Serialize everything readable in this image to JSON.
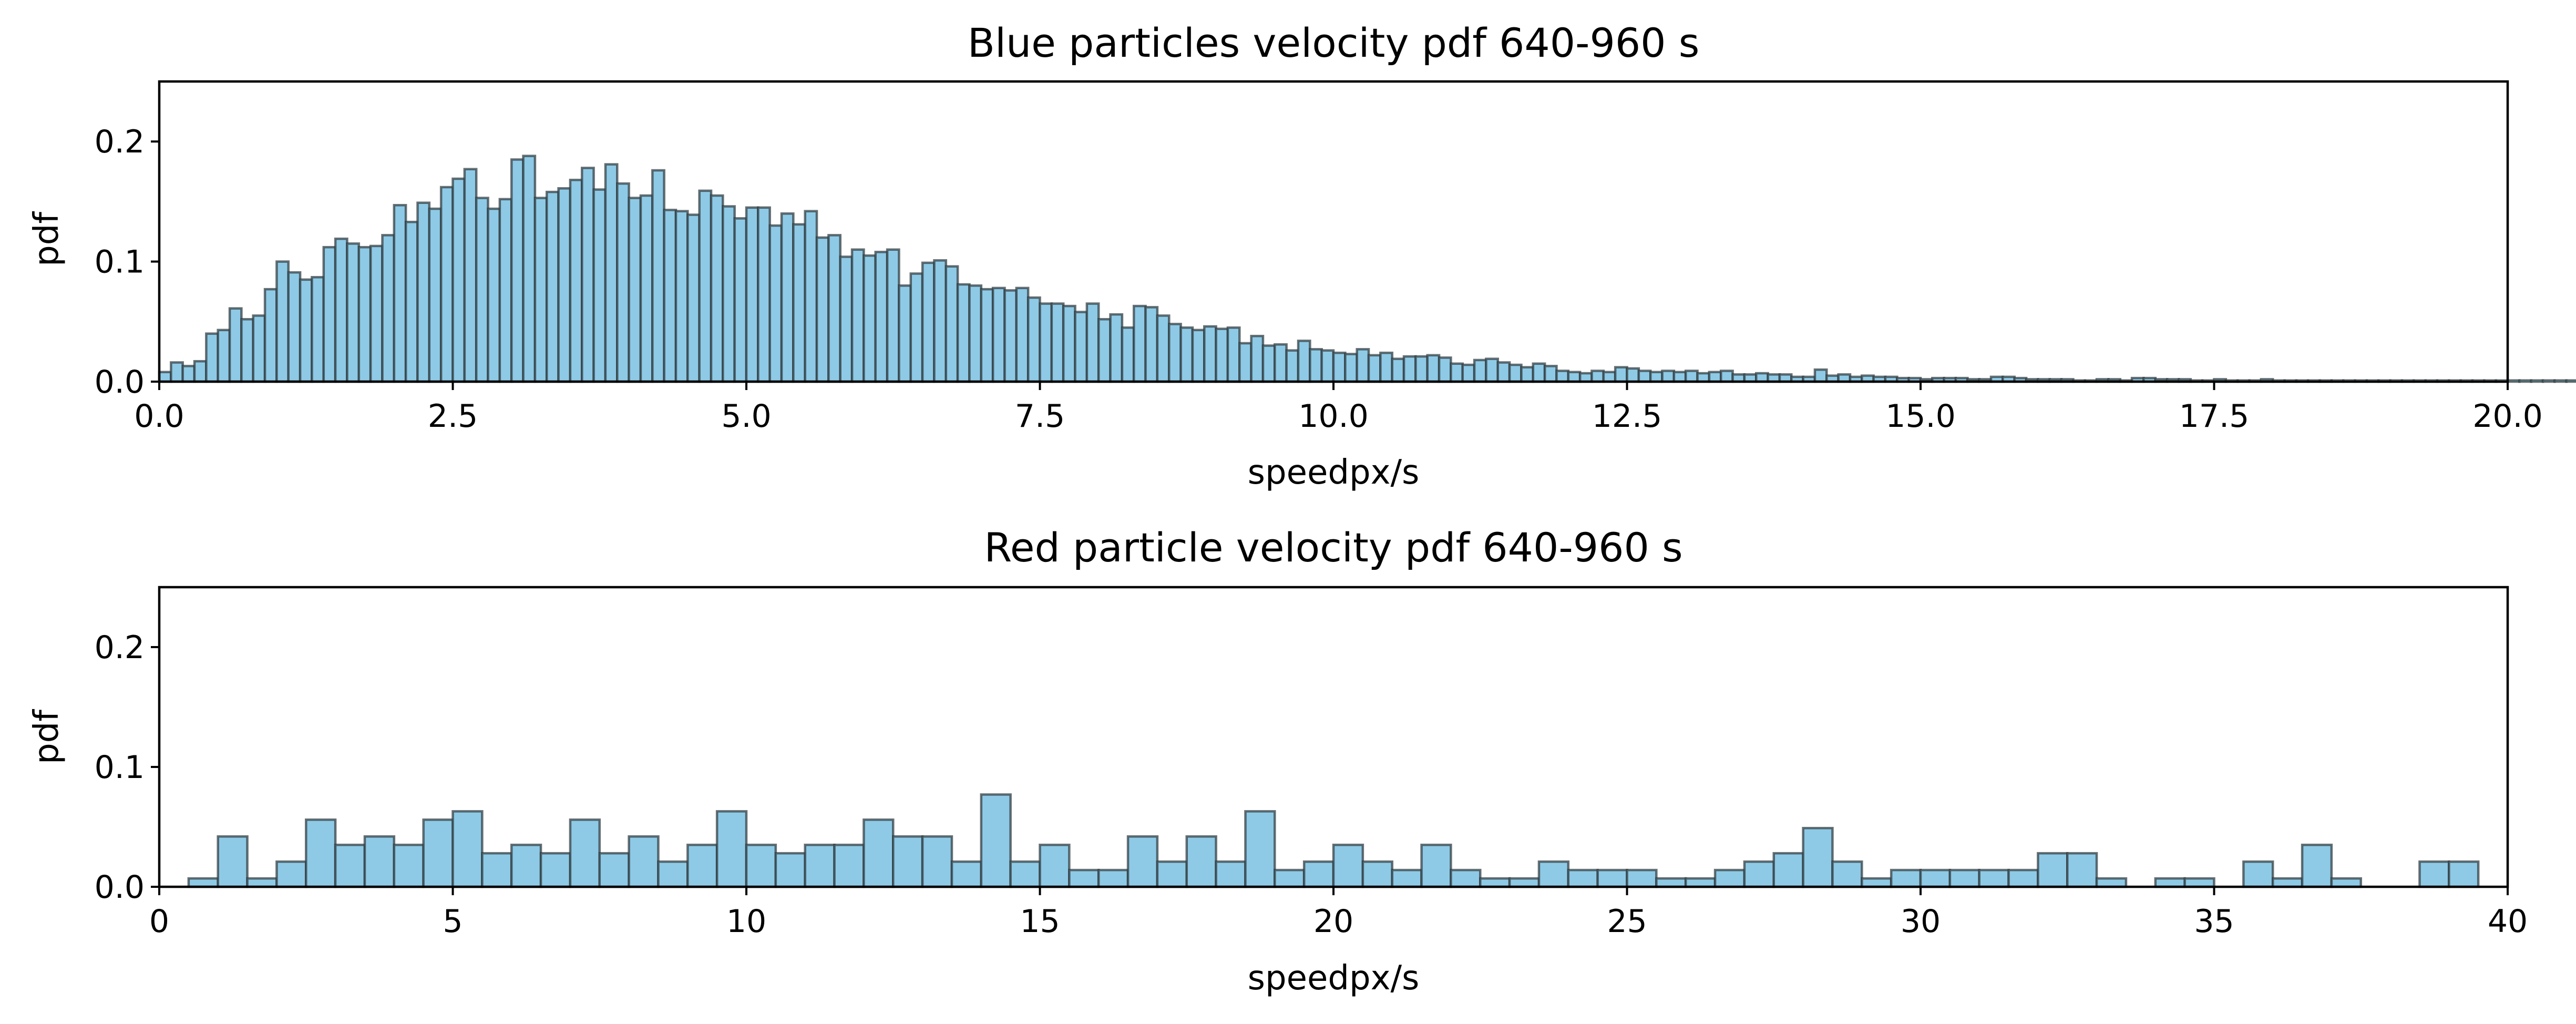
{
  "colors": {
    "bar_fill": "#8ecae6",
    "bar_edge": "#2f3a3f",
    "axes": "#000000",
    "background": "#ffffff"
  },
  "chart_data": [
    {
      "type": "bar",
      "title": "Blue particles velocity pdf 640-960 s",
      "xlabel": "speedpx/s",
      "ylabel": "pdf",
      "xlim": [
        0,
        20
      ],
      "ylim": [
        0,
        0.25
      ],
      "xticks": [
        "0.0",
        "2.5",
        "5.0",
        "7.5",
        "10.0",
        "12.5",
        "15.0",
        "17.5",
        "20.0"
      ],
      "yticks": [
        "0.0",
        "0.1",
        "0.2"
      ],
      "grid": false,
      "bin_width": 0.1,
      "bin_start": 0.0,
      "values": [
        0.008,
        0.016,
        0.013,
        0.017,
        0.04,
        0.043,
        0.061,
        0.052,
        0.055,
        0.077,
        0.1,
        0.091,
        0.085,
        0.087,
        0.112,
        0.119,
        0.115,
        0.112,
        0.113,
        0.122,
        0.147,
        0.133,
        0.149,
        0.144,
        0.162,
        0.169,
        0.177,
        0.153,
        0.144,
        0.152,
        0.185,
        0.188,
        0.153,
        0.158,
        0.161,
        0.168,
        0.178,
        0.16,
        0.181,
        0.165,
        0.153,
        0.155,
        0.176,
        0.143,
        0.142,
        0.139,
        0.159,
        0.155,
        0.146,
        0.136,
        0.145,
        0.145,
        0.13,
        0.14,
        0.131,
        0.142,
        0.12,
        0.122,
        0.104,
        0.11,
        0.105,
        0.108,
        0.11,
        0.08,
        0.09,
        0.099,
        0.101,
        0.096,
        0.081,
        0.08,
        0.077,
        0.078,
        0.076,
        0.078,
        0.07,
        0.065,
        0.065,
        0.063,
        0.058,
        0.065,
        0.052,
        0.056,
        0.045,
        0.063,
        0.062,
        0.055,
        0.048,
        0.045,
        0.043,
        0.046,
        0.044,
        0.045,
        0.032,
        0.038,
        0.03,
        0.031,
        0.026,
        0.034,
        0.027,
        0.026,
        0.024,
        0.023,
        0.027,
        0.022,
        0.024,
        0.019,
        0.021,
        0.021,
        0.022,
        0.02,
        0.015,
        0.014,
        0.018,
        0.019,
        0.016,
        0.014,
        0.012,
        0.015,
        0.013,
        0.009,
        0.008,
        0.007,
        0.009,
        0.008,
        0.012,
        0.011,
        0.009,
        0.008,
        0.009,
        0.008,
        0.009,
        0.007,
        0.008,
        0.009,
        0.006,
        0.006,
        0.007,
        0.006,
        0.006,
        0.004,
        0.004,
        0.01,
        0.005,
        0.006,
        0.004,
        0.005,
        0.004,
        0.004,
        0.003,
        0.003,
        0.002,
        0.003,
        0.003,
        0.003,
        0.002,
        0.002,
        0.004,
        0.004,
        0.003,
        0.002,
        0.002,
        0.002,
        0.002,
        0.001,
        0.001,
        0.002,
        0.002,
        0.001,
        0.003,
        0.003,
        0.002,
        0.002,
        0.002,
        0.001,
        0.001,
        0.002,
        0.001,
        0.001,
        0.001,
        0.002,
        0.001,
        0.001,
        0.001,
        0.001,
        0.001,
        0.001,
        0.001,
        0.001,
        0.001,
        0.001,
        0.001,
        0.001,
        0.001,
        0.001,
        0.001,
        0.001,
        0.001,
        0.001,
        0.001,
        0.001,
        0.001,
        0.001,
        0.001,
        0.001,
        0.001,
        0.001,
        0.001,
        0.001,
        0.001,
        0.001,
        0.001
      ]
    },
    {
      "type": "bar",
      "title": "Red particle velocity pdf 640-960 s",
      "xlabel": "speedpx/s",
      "ylabel": "pdf",
      "xlim": [
        0,
        40
      ],
      "ylim": [
        0,
        0.25
      ],
      "xticks": [
        "0",
        "5",
        "10",
        "15",
        "20",
        "25",
        "30",
        "35",
        "40"
      ],
      "yticks": [
        "0.0",
        "0.1",
        "0.2"
      ],
      "grid": false,
      "bin_width": 0.5,
      "bin_start": 0.5,
      "values": [
        0.007,
        0.042,
        0.007,
        0.021,
        0.056,
        0.035,
        0.042,
        0.035,
        0.056,
        0.063,
        0.028,
        0.035,
        0.028,
        0.056,
        0.028,
        0.042,
        0.021,
        0.035,
        0.063,
        0.035,
        0.028,
        0.035,
        0.035,
        0.056,
        0.042,
        0.042,
        0.021,
        0.077,
        0.021,
        0.035,
        0.014,
        0.014,
        0.042,
        0.021,
        0.042,
        0.021,
        0.063,
        0.014,
        0.021,
        0.035,
        0.021,
        0.014,
        0.035,
        0.014,
        0.007,
        0.007,
        0.021,
        0.014,
        0.014,
        0.014,
        0.007,
        0.007,
        0.014,
        0.021,
        0.028,
        0.049,
        0.021,
        0.007,
        0.014,
        0.014,
        0.014,
        0.014,
        0.014,
        0.028,
        0.028,
        0.007,
        0,
        0.007,
        0.007,
        0,
        0.021,
        0.007,
        0.035,
        0.007,
        0,
        0,
        0.021,
        0.021
      ]
    }
  ]
}
